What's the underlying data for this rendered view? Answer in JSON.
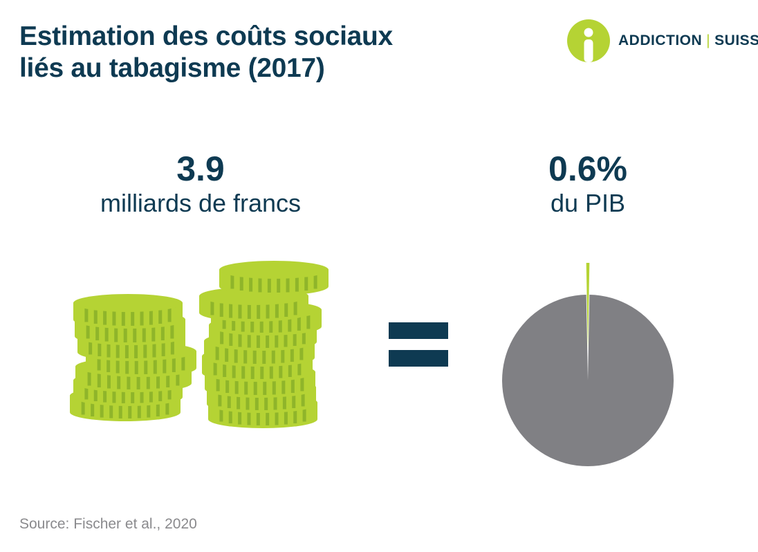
{
  "title_line1": "Estimation des coûts sociaux",
  "title_line2": "liés au tabagisme (2017)",
  "logo": {
    "left": "ADDICTION",
    "separator": "|",
    "right": "SUISSE"
  },
  "cost": {
    "value": "3.9",
    "unit": "milliards de francs"
  },
  "gdp": {
    "value": "0.6%",
    "unit": "du PIB"
  },
  "source": "Source: Fischer et al., 2020",
  "colors": {
    "navy": "#0e3a52",
    "green": "#b5d334",
    "green_dark": "#8fb52a",
    "gray": "#808084"
  },
  "chart_data": {
    "type": "pie",
    "slices": [
      {
        "name": "",
        "value": 0.6,
        "color": "#b5d334"
      },
      {
        "name": "",
        "value": 99.4,
        "color": "#808084"
      }
    ]
  }
}
